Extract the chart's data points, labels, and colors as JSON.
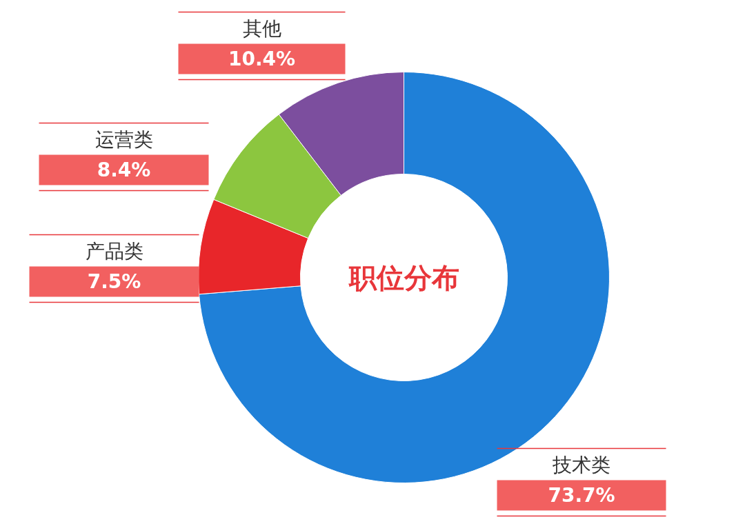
{
  "chart_data": {
    "type": "donut",
    "title": "职位分布",
    "categories": [
      "技术类",
      "产品类",
      "运营类",
      "其他"
    ],
    "values": [
      73.7,
      7.5,
      8.4,
      10.4
    ],
    "colors": [
      "#1f80d8",
      "#e8262a",
      "#8cc63f",
      "#7c4e9e"
    ],
    "value_labels": [
      "73.7%",
      "7.5%",
      "8.4%",
      "10.4%"
    ],
    "legend": false
  }
}
